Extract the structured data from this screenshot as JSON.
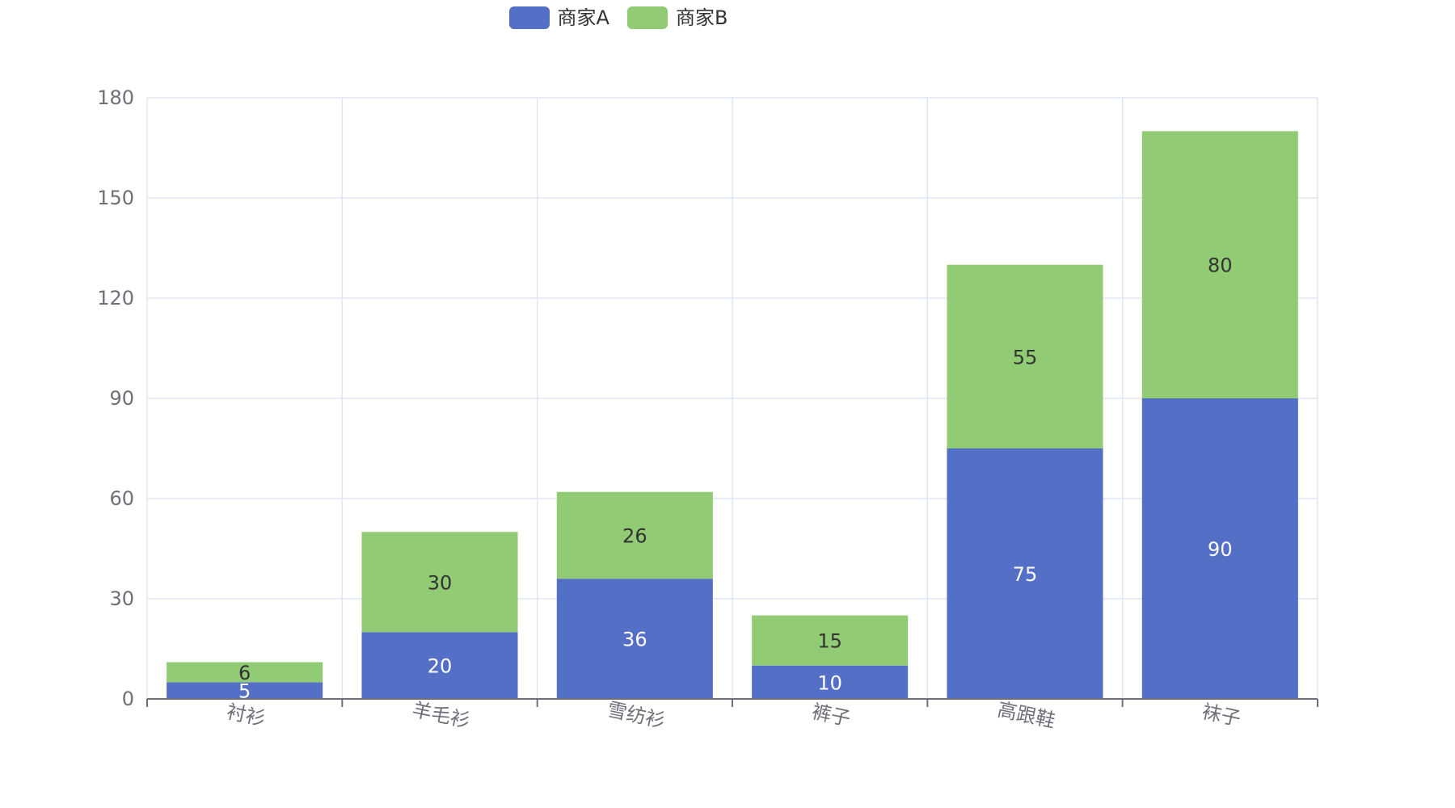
{
  "chart_data": {
    "type": "bar",
    "stacked": true,
    "categories": [
      "衬衫",
      "羊毛衫",
      "雪纺衫",
      "裤子",
      "高跟鞋",
      "袜子"
    ],
    "series": [
      {
        "name": "商家A",
        "values": [
          5,
          20,
          36,
          10,
          75,
          90
        ],
        "color": "#5470c6",
        "label_color": "#ffffff"
      },
      {
        "name": "商家B",
        "values": [
          6,
          30,
          26,
          15,
          55,
          80
        ],
        "color": "#91cc75",
        "label_color": "#333333"
      }
    ],
    "ylim": [
      0,
      180
    ],
    "yticks": [
      0,
      30,
      60,
      90,
      120,
      150,
      180
    ],
    "grid": true,
    "legend_position": "top-center",
    "colors": {
      "grid": "#e0e6f1",
      "axis": "#6e7079",
      "axis_line": "#6e7079"
    }
  }
}
